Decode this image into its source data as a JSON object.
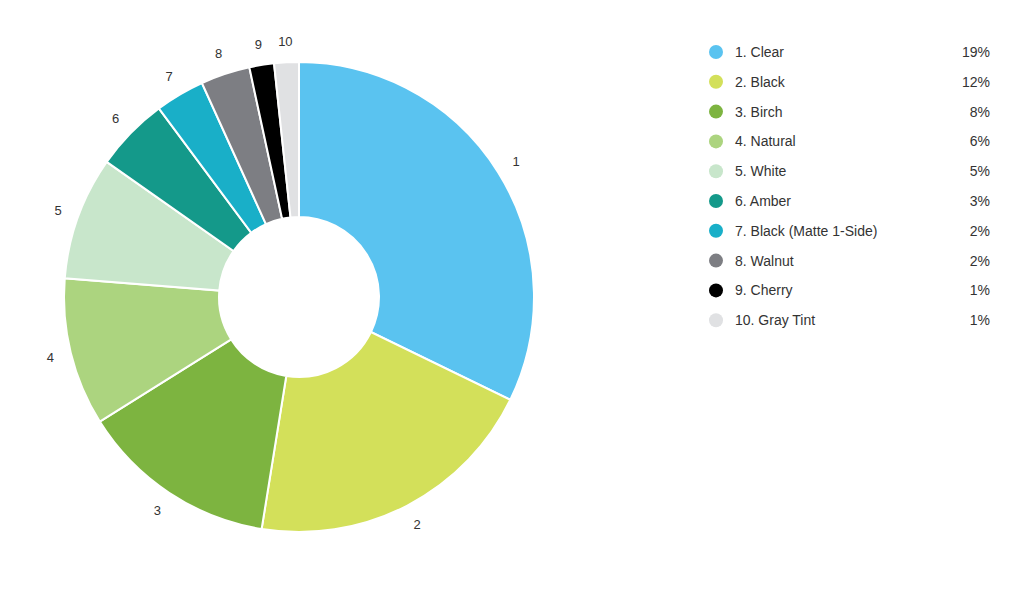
{
  "chart_data": {
    "type": "pie",
    "categories": [
      "1. Clear",
      "2. Black",
      "3. Birch",
      "4. Natural",
      "5. White",
      "6. Amber",
      "7. Black (Matte 1-Side)",
      "8. Walnut",
      "9. Cherry",
      "10. Gray Tint"
    ],
    "slice_labels": [
      "1",
      "2",
      "3",
      "4",
      "5",
      "6",
      "7",
      "8",
      "9",
      "10"
    ],
    "values": [
      19,
      12,
      8,
      6,
      5,
      3,
      2,
      2,
      1,
      1
    ],
    "value_labels": [
      "19%",
      "12%",
      "8%",
      "6%",
      "5%",
      "3%",
      "2%",
      "2%",
      "1%",
      "1%"
    ],
    "colors": [
      "#5ac3f0",
      "#d3e05a",
      "#7db440",
      "#acd47f",
      "#c8e6cb",
      "#14998a",
      "#19afc8",
      "#7d7e83",
      "#000000",
      "#e0e1e3"
    ],
    "legend": "right"
  }
}
